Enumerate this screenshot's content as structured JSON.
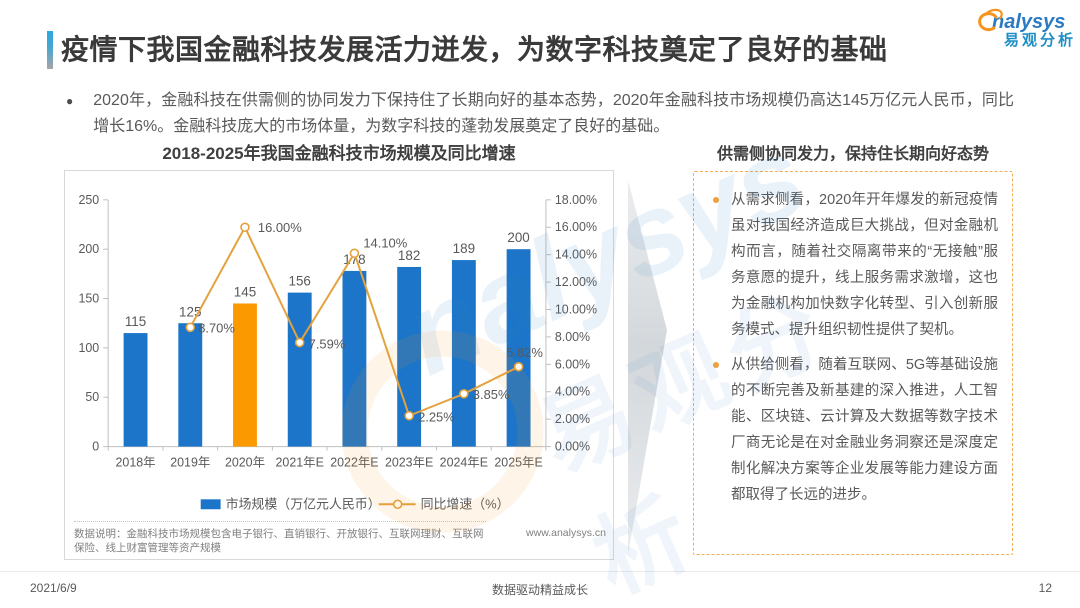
{
  "header": {
    "title": "疫情下我国金融科技发展活力迸发，为数字科技奠定了良好的基础",
    "logo": {
      "brand": "nalysys",
      "brand_cn": "易观分析"
    }
  },
  "intro_bullet": "2020年，金融科技在供需侧的协同发力下保持住了长期向好的基本态势，2020年金融科技市场规模仍高达145万亿元人民币，同比增长16%。金融科技庞大的市场体量，为数字科技的蓬勃发展奠定了良好的基础。",
  "chart_data": {
    "type": "bar+line",
    "title": "2018-2025年我国金融科技市场规模及同比增速",
    "categories": [
      "2018年",
      "2019年",
      "2020年",
      "2021年E",
      "2022年E",
      "2023年E",
      "2024年E",
      "2025年E"
    ],
    "series": [
      {
        "name": "市场规模（万亿元人民币）",
        "type": "bar",
        "values": [
          115,
          125,
          145,
          156,
          178,
          182,
          189,
          200
        ],
        "labels": [
          "115",
          "125",
          "145",
          "156",
          "178",
          "182",
          "189",
          "200"
        ],
        "color": "#1c75c8",
        "highlight_index": 2,
        "highlight_color": "#fa9a00"
      },
      {
        "name": "同比增速（%）",
        "type": "line",
        "values": [
          null,
          8.7,
          16.0,
          7.59,
          14.1,
          2.25,
          3.85,
          5.82
        ],
        "labels": [
          null,
          "8.70%",
          "16.00%",
          "7.59%",
          "14.10%",
          "2.25%",
          "3.85%",
          "5.82%"
        ],
        "color": "#e3a23d"
      }
    ],
    "left_axis": {
      "min": 0,
      "max": 250,
      "step": 50,
      "ticks": [
        "250",
        "200",
        "150",
        "100",
        "50",
        "0"
      ]
    },
    "right_axis": {
      "min": 0,
      "max": 18,
      "step": 2,
      "ticks": [
        "18.00%",
        "16.00%",
        "14.00%",
        "12.00%",
        "10.00%",
        "8.00%",
        "6.00%",
        "4.00%",
        "2.00%",
        "0.00%"
      ]
    },
    "legend_position": "bottom",
    "grid": false
  },
  "chart_note": {
    "text": "数据说明：金融科技市场规模包含电子银行、直销银行、开放银行、互联网理财、互联网保险、线上财富管理等资产规模",
    "site": "www.analysys.cn"
  },
  "right_panel": {
    "title": "供需侧协同发力，保持住长期向好态势",
    "bullets": [
      "从需求侧看，2020年开年爆发的新冠疫情虽对我国经济造成巨大挑战，但对金融机构而言，随着社交隔离带来的“无接触”服务意愿的提升，线上服务需求激增，这也为金融机构加快数字化转型、引入创新服务模式、提升组织韧性提供了契机。",
      "从供给侧看，随着互联网、5G等基础设施的不断完善及新基建的深入推进，人工智能、区块链、云计算及大数据等数字技术厂商无论是在对金融业务洞察还是深度定制化解决方案等企业发展等能力建设方面都取得了长远的进步。"
    ]
  },
  "watermark": {
    "brand": "nalysys",
    "brand_cn": "易观分析"
  },
  "footer": {
    "date": "2021/6/9",
    "center": "数据驱动精益成长",
    "page": "12"
  }
}
